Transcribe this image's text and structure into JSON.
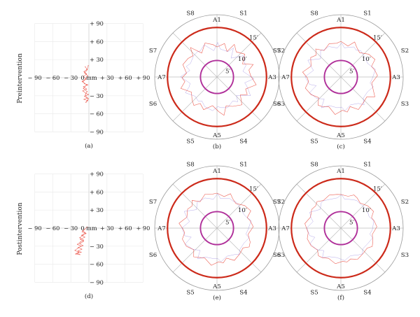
{
  "figure": {
    "rows": [
      {
        "label": "Preintervention"
      },
      {
        "label": "Postintervention"
      }
    ]
  },
  "colors": {
    "trace": "#e8392c",
    "outer_circle": "#cc2a1a",
    "inner_circle": "#b0309a",
    "grid": "#bdbdbd",
    "axis_ring": "#9a9a9a"
  },
  "chart_data": [
    {
      "type": "scatter",
      "panel": "(a)",
      "row": "Preintervention",
      "axis_unit": "mm",
      "x_ticks": [
        "− 90",
        "− 60",
        "− 30",
        "0",
        "+ 30",
        "+ 60",
        "+ 90"
      ],
      "y_ticks": [
        "+ 90",
        "+ 60",
        "+ 30",
        "0",
        "− 30",
        "− 60",
        "− 90"
      ],
      "center_label": "0 mm",
      "xlim": [
        -90,
        90
      ],
      "ylim": [
        -90,
        90
      ],
      "grid": true,
      "trace_xy": [
        [
          -6,
          18
        ],
        [
          -3,
          14
        ],
        [
          -8,
          10
        ],
        [
          -4,
          6
        ],
        [
          -9,
          2
        ],
        [
          -5,
          -2
        ],
        [
          -11,
          -6
        ],
        [
          -7,
          -10
        ],
        [
          -2,
          -12
        ],
        [
          -9,
          -15
        ],
        [
          -4,
          -19
        ],
        [
          -10,
          -22
        ],
        [
          -5,
          -26
        ],
        [
          -1,
          -28
        ],
        [
          -7,
          -31
        ],
        [
          -3,
          -34
        ],
        [
          -8,
          -36
        ],
        [
          -2,
          -38
        ],
        [
          -5,
          -41
        ],
        [
          -1,
          -35
        ],
        [
          -6,
          -29
        ],
        [
          -3,
          -23
        ],
        [
          -9,
          -18
        ],
        [
          -4,
          -12
        ],
        [
          -10,
          -7
        ],
        [
          -6,
          -3
        ],
        [
          -2,
          3
        ],
        [
          -7,
          8
        ],
        [
          -3,
          13
        ],
        [
          -1,
          20
        ]
      ]
    },
    {
      "type": "polar",
      "panel": "(b)",
      "row": "Preintervention",
      "sector_labels": [
        "S1",
        "S2",
        "S3",
        "S4",
        "S5",
        "S6",
        "S7",
        "S8"
      ],
      "axis_labels": [
        "A1",
        "A3",
        "A5",
        "A7"
      ],
      "ring_labels": [
        "5′",
        "10′",
        "15′"
      ],
      "rings": [
        5,
        10,
        15
      ],
      "trace_r": [
        9.1,
        10.4,
        8.3,
        11.2,
        9.6,
        10.9,
        8.7,
        11.6,
        9.9,
        10.2,
        12.1,
        9.4,
        10.6,
        8.9,
        11.3,
        10.1,
        9.2,
        11.8,
        10.5,
        8.8,
        10.7,
        9.5,
        11.1,
        10.3,
        9.0,
        11.5,
        9.8,
        10.6,
        9.3,
        11.0,
        10.4,
        9.7,
        12.0,
        8.6,
        10.9,
        9.9
      ]
    },
    {
      "type": "polar",
      "panel": "(c)",
      "row": "Preintervention",
      "sector_labels": [
        "S1",
        "S2",
        "S3",
        "S4",
        "S5",
        "S6",
        "S7",
        "S8"
      ],
      "axis_labels": [
        "A1",
        "A3",
        "A5",
        "A7"
      ],
      "ring_labels": [
        "5′",
        "10′",
        "15′"
      ],
      "rings": [
        5,
        10,
        15
      ],
      "trace_r": [
        10.8,
        9.6,
        11.4,
        10.2,
        9.3,
        10.9,
        11.6,
        9.8,
        10.4,
        11.1,
        9.5,
        10.7,
        11.9,
        9.9,
        10.3,
        11.2,
        9.4,
        10.8,
        10.1,
        11.5,
        9.7,
        10.6,
        11.0,
        9.2,
        10.5,
        11.3,
        9.9,
        10.2,
        11.7,
        9.6,
        10.9,
        10.0,
        11.4,
        9.5,
        10.7,
        10.3
      ]
    },
    {
      "type": "scatter",
      "panel": "(d)",
      "row": "Postintervention",
      "axis_unit": "mm",
      "x_ticks": [
        "− 90",
        "− 60",
        "− 30",
        "0",
        "+ 30",
        "+ 60",
        "+ 90"
      ],
      "y_ticks": [
        "+ 90",
        "+ 60",
        "+ 30",
        "0",
        "− 30",
        "− 60",
        "− 90"
      ],
      "center_label": "0 mm",
      "xlim": [
        -90,
        90
      ],
      "ylim": [
        -90,
        90
      ],
      "grid": true,
      "trace_xy": [
        [
          -10,
          -4
        ],
        [
          -6,
          -8
        ],
        [
          -12,
          -12
        ],
        [
          -7,
          -15
        ],
        [
          -14,
          -19
        ],
        [
          -9,
          -22
        ],
        [
          -15,
          -26
        ],
        [
          -10,
          -29
        ],
        [
          -17,
          -32
        ],
        [
          -12,
          -35
        ],
        [
          -18,
          -38
        ],
        [
          -13,
          -40
        ],
        [
          -20,
          -42
        ],
        [
          -15,
          -44
        ],
        [
          -22,
          -43
        ],
        [
          -17,
          -40
        ],
        [
          -23,
          -37
        ],
        [
          -18,
          -33
        ],
        [
          -13,
          -30
        ],
        [
          -19,
          -27
        ],
        [
          -14,
          -23
        ],
        [
          -9,
          -20
        ],
        [
          -15,
          -16
        ],
        [
          -10,
          -12
        ],
        [
          -5,
          -9
        ],
        [
          -11,
          -6
        ],
        [
          -7,
          -2
        ],
        [
          -3,
          2
        ]
      ]
    },
    {
      "type": "polar",
      "panel": "(e)",
      "row": "Postintervention",
      "sector_labels": [
        "S1",
        "S2",
        "S3",
        "S4",
        "S5",
        "S6",
        "S7",
        "S8"
      ],
      "axis_labels": [
        "A1",
        "A3",
        "A5",
        "A7"
      ],
      "ring_labels": [
        "5′",
        "10′",
        "15′"
      ],
      "rings": [
        5,
        10,
        15
      ],
      "trace_r": [
        10.6,
        9.8,
        11.2,
        10.1,
        9.4,
        10.8,
        11.5,
        9.7,
        10.3,
        11.0,
        9.6,
        10.9,
        11.3,
        9.9,
        10.4,
        11.1,
        9.5,
        10.7,
        10.2,
        11.4,
        9.8,
        10.5,
        11.2,
        9.6,
        10.8,
        11.0,
        9.9,
        10.3,
        11.6,
        9.7,
        10.6,
        10.1,
        11.3,
        9.5,
        10.9,
        10.4
      ]
    },
    {
      "type": "polar",
      "panel": "(f)",
      "row": "Postintervention",
      "sector_labels": [
        "S1",
        "S2",
        "S3",
        "S4",
        "S5",
        "S6",
        "S7",
        "S8"
      ],
      "axis_labels": [
        "A1",
        "A3",
        "A5",
        "A7"
      ],
      "ring_labels": [
        "5′",
        "10′",
        "15′"
      ],
      "rings": [
        5,
        10,
        15
      ],
      "trace_r": [
        10.2,
        9.9,
        10.8,
        10.4,
        9.6,
        10.6,
        11.1,
        9.8,
        10.3,
        10.9,
        9.7,
        10.5,
        11.0,
        10.0,
        10.2,
        10.7,
        9.8,
        10.4,
        10.1,
        10.9,
        9.9,
        10.6,
        10.8,
        9.7,
        10.5,
        10.7,
        10.0,
        10.3,
        11.0,
        9.8,
        10.5,
        10.2,
        10.8,
        9.9,
        10.6,
        10.3
      ]
    }
  ]
}
